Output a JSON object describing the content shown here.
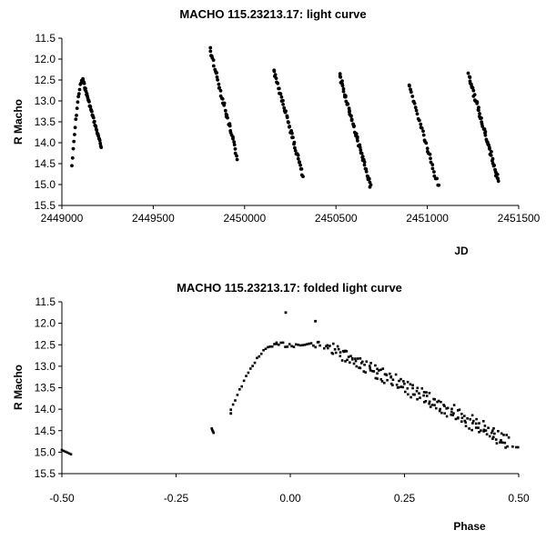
{
  "chart_data": [
    {
      "type": "scatter",
      "title": "MACHO 115.23213.17: light curve",
      "xlabel": "JD",
      "ylabel": "R Macho",
      "xlim": [
        2449000,
        2451500
      ],
      "ylim": [
        11.5,
        15.5
      ],
      "y_inverted": true,
      "x_ticks": [
        "2449000",
        "2449500",
        "2450000",
        "2450500",
        "2451000",
        "2451500"
      ],
      "y_ticks": [
        "11.5",
        "12.0",
        "12.5",
        "13.0",
        "13.5",
        "14.0",
        "14.5",
        "15.0",
        "15.5"
      ],
      "grid": false,
      "legend": "none",
      "marker_color": "#000000",
      "segments": [
        {
          "x_start": 2449055,
          "x_peak": 2449115,
          "x_end": 2449215,
          "y_start": 14.55,
          "y_peak": 12.5,
          "y_end": 14.1,
          "n": 60
        },
        {
          "x_start": 2449810,
          "x_end": 2449960,
          "y_start": 11.75,
          "y_end": 14.35,
          "n": 42
        },
        {
          "x_start": 2450160,
          "x_end": 2450320,
          "y_start": 12.25,
          "y_end": 14.8,
          "n": 45
        },
        {
          "x_start": 2450520,
          "x_end": 2450690,
          "y_start": 12.4,
          "y_end": 15.05,
          "n": 60
        },
        {
          "x_start": 2450900,
          "x_end": 2451060,
          "y_start": 12.6,
          "y_end": 15.05,
          "n": 35
        },
        {
          "x_start": 2451225,
          "x_end": 2451390,
          "y_start": 12.35,
          "y_end": 14.95,
          "n": 55
        }
      ]
    },
    {
      "type": "scatter",
      "title": "MACHO 115.23213.17: folded light curve",
      "xlabel": "Phase",
      "ylabel": "R Macho",
      "xlim": [
        -0.5,
        0.5
      ],
      "ylim": [
        11.5,
        15.5
      ],
      "y_inverted": true,
      "x_ticks": [
        "-0.50",
        "-0.25",
        "0.00",
        "0.25",
        "0.50"
      ],
      "y_ticks": [
        "11.5",
        "12.0",
        "12.5",
        "13.0",
        "13.5",
        "14.0",
        "14.5",
        "15.0",
        "15.5"
      ],
      "grid": false,
      "legend": "none",
      "marker_color": "#000000",
      "clusters": [
        {
          "x": [
            -0.5,
            -0.48
          ],
          "y": [
            14.95,
            15.05
          ],
          "n": 6
        },
        {
          "x": [
            -0.172,
            -0.168
          ],
          "y": [
            14.45,
            14.55
          ],
          "n": 4
        }
      ],
      "outliers": [
        {
          "x": -0.13,
          "y": 14.1
        },
        {
          "x": -0.01,
          "y": 11.75
        },
        {
          "x": 0.055,
          "y": 11.95
        }
      ],
      "rise": {
        "x_start": -0.13,
        "x_end": -0.03,
        "y_start": 14.0,
        "y_end": 12.5,
        "n": 22
      },
      "peak": {
        "x_start": -0.03,
        "x_end": 0.06,
        "y": 12.5,
        "n": 20
      },
      "declines": [
        {
          "x_start": 0.06,
          "x_end": 0.47,
          "y_start": 12.5,
          "y_end": 14.85,
          "n": 70
        },
        {
          "x_start": 0.1,
          "x_end": 0.48,
          "y_start": 12.55,
          "y_end": 14.65,
          "n": 60
        },
        {
          "x_start": 0.08,
          "x_end": 0.5,
          "y_start": 12.45,
          "y_end": 14.95,
          "n": 55
        }
      ]
    }
  ]
}
